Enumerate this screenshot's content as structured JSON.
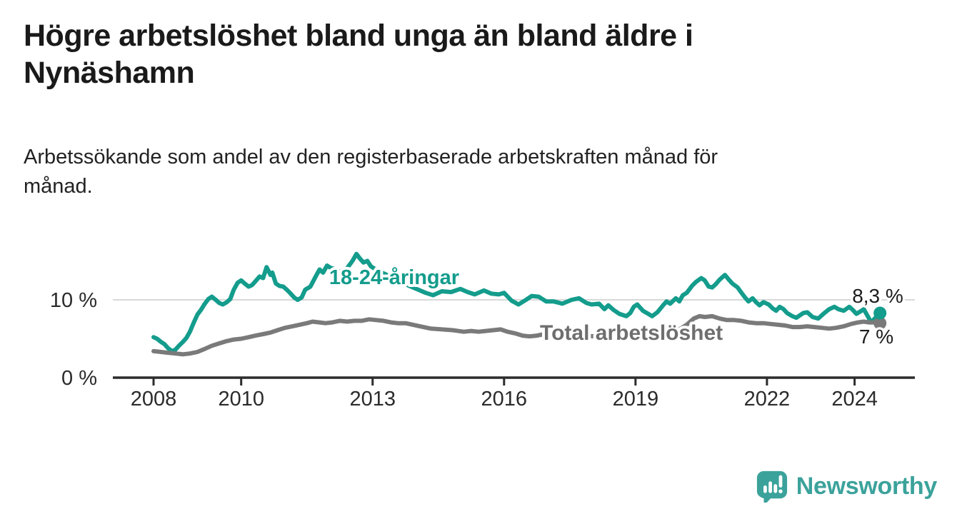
{
  "header": {
    "title": "Högre arbetslöshet bland unga än bland äldre i\nNynäshamn",
    "subtitle": "Arbetssökande som andel av den registerbaserade arbetskraften månad för\nmånad."
  },
  "chart_data": {
    "type": "line",
    "title": "Högre arbetslöshet bland unga än bland äldre i Nynäshamn",
    "xlabel": "",
    "ylabel": "",
    "unit": "%",
    "x_range": [
      2007.9,
      2025.3
    ],
    "y_range": [
      0,
      18
    ],
    "grid": "single horizontal gridline at 10 %",
    "x_ticks": [
      2008,
      2010,
      2013,
      2016,
      2019,
      2022,
      2024
    ],
    "y_ticks": [
      {
        "value": 0,
        "label": "0 %"
      },
      {
        "value": 10,
        "label": "10 %"
      }
    ],
    "series": [
      {
        "name": "18-24-åringar",
        "color": "#149c8c",
        "end_label": "8,3 %",
        "end_value": 8.3,
        "points": [
          [
            2008.0,
            5.2
          ],
          [
            2008.08,
            5.0
          ],
          [
            2008.17,
            4.6
          ],
          [
            2008.25,
            4.3
          ],
          [
            2008.33,
            3.8
          ],
          [
            2008.42,
            3.4
          ],
          [
            2008.5,
            3.6
          ],
          [
            2008.58,
            4.1
          ],
          [
            2008.67,
            4.6
          ],
          [
            2008.75,
            5.1
          ],
          [
            2008.83,
            5.9
          ],
          [
            2008.92,
            7.1
          ],
          [
            2009.0,
            8.1
          ],
          [
            2009.08,
            8.7
          ],
          [
            2009.17,
            9.5
          ],
          [
            2009.25,
            10.1
          ],
          [
            2009.33,
            10.4
          ],
          [
            2009.42,
            10.0
          ],
          [
            2009.5,
            9.6
          ],
          [
            2009.58,
            9.4
          ],
          [
            2009.67,
            9.7
          ],
          [
            2009.75,
            10.1
          ],
          [
            2009.83,
            11.3
          ],
          [
            2009.92,
            12.2
          ],
          [
            2010.0,
            12.5
          ],
          [
            2010.08,
            12.1
          ],
          [
            2010.17,
            11.7
          ],
          [
            2010.25,
            11.9
          ],
          [
            2010.33,
            12.4
          ],
          [
            2010.42,
            13.0
          ],
          [
            2010.5,
            12.8
          ],
          [
            2010.58,
            14.2
          ],
          [
            2010.67,
            13.2
          ],
          [
            2010.71,
            13.5
          ],
          [
            2010.79,
            12.1
          ],
          [
            2010.87,
            11.8
          ],
          [
            2010.96,
            11.7
          ],
          [
            2011.04,
            11.3
          ],
          [
            2011.13,
            10.8
          ],
          [
            2011.21,
            10.3
          ],
          [
            2011.29,
            10.0
          ],
          [
            2011.38,
            10.3
          ],
          [
            2011.46,
            11.3
          ],
          [
            2011.58,
            11.7
          ],
          [
            2011.71,
            13.1
          ],
          [
            2011.79,
            13.9
          ],
          [
            2011.87,
            13.5
          ],
          [
            2011.96,
            14.4
          ],
          [
            2012.04,
            14.1
          ],
          [
            2012.17,
            13.9
          ],
          [
            2012.29,
            13.5
          ],
          [
            2012.42,
            14.1
          ],
          [
            2012.54,
            15.0
          ],
          [
            2012.63,
            15.9
          ],
          [
            2012.71,
            15.3
          ],
          [
            2012.79,
            14.8
          ],
          [
            2012.88,
            15.0
          ],
          [
            2012.96,
            14.3
          ],
          [
            2013.13,
            13.7
          ],
          [
            2013.29,
            13.3
          ],
          [
            2013.5,
            12.7
          ],
          [
            2013.71,
            12.1
          ],
          [
            2013.92,
            11.6
          ],
          [
            2014.04,
            11.3
          ],
          [
            2014.21,
            10.9
          ],
          [
            2014.38,
            10.6
          ],
          [
            2014.58,
            11.1
          ],
          [
            2014.79,
            11.0
          ],
          [
            2015.0,
            11.4
          ],
          [
            2015.17,
            11.0
          ],
          [
            2015.33,
            10.7
          ],
          [
            2015.54,
            11.2
          ],
          [
            2015.71,
            10.8
          ],
          [
            2015.88,
            10.7
          ],
          [
            2016.0,
            10.9
          ],
          [
            2016.17,
            9.9
          ],
          [
            2016.33,
            9.4
          ],
          [
            2016.5,
            10.0
          ],
          [
            2016.63,
            10.5
          ],
          [
            2016.79,
            10.4
          ],
          [
            2016.96,
            9.8
          ],
          [
            2017.13,
            9.8
          ],
          [
            2017.33,
            9.5
          ],
          [
            2017.54,
            10.0
          ],
          [
            2017.71,
            10.2
          ],
          [
            2017.88,
            9.6
          ],
          [
            2018.0,
            9.4
          ],
          [
            2018.17,
            9.5
          ],
          [
            2018.29,
            8.8
          ],
          [
            2018.38,
            9.3
          ],
          [
            2018.5,
            8.7
          ],
          [
            2018.63,
            8.2
          ],
          [
            2018.79,
            7.9
          ],
          [
            2018.88,
            8.3
          ],
          [
            2018.96,
            9.1
          ],
          [
            2019.04,
            9.4
          ],
          [
            2019.17,
            8.6
          ],
          [
            2019.29,
            8.2
          ],
          [
            2019.38,
            7.9
          ],
          [
            2019.5,
            8.4
          ],
          [
            2019.63,
            9.3
          ],
          [
            2019.71,
            9.8
          ],
          [
            2019.79,
            9.5
          ],
          [
            2019.92,
            10.2
          ],
          [
            2020.0,
            9.8
          ],
          [
            2020.08,
            10.6
          ],
          [
            2020.17,
            10.9
          ],
          [
            2020.29,
            11.8
          ],
          [
            2020.38,
            12.3
          ],
          [
            2020.5,
            12.8
          ],
          [
            2020.58,
            12.5
          ],
          [
            2020.67,
            11.7
          ],
          [
            2020.75,
            11.6
          ],
          [
            2020.83,
            12.0
          ],
          [
            2020.92,
            12.6
          ],
          [
            2021.04,
            13.2
          ],
          [
            2021.13,
            12.6
          ],
          [
            2021.21,
            12.1
          ],
          [
            2021.33,
            11.6
          ],
          [
            2021.42,
            10.9
          ],
          [
            2021.5,
            10.3
          ],
          [
            2021.58,
            9.8
          ],
          [
            2021.67,
            10.2
          ],
          [
            2021.75,
            9.7
          ],
          [
            2021.83,
            9.3
          ],
          [
            2021.92,
            9.7
          ],
          [
            2022.04,
            9.4
          ],
          [
            2022.13,
            8.9
          ],
          [
            2022.21,
            8.6
          ],
          [
            2022.29,
            9.1
          ],
          [
            2022.38,
            8.8
          ],
          [
            2022.46,
            8.3
          ],
          [
            2022.58,
            7.9
          ],
          [
            2022.67,
            7.7
          ],
          [
            2022.75,
            8.0
          ],
          [
            2022.83,
            8.3
          ],
          [
            2022.92,
            8.4
          ],
          [
            2023.04,
            7.8
          ],
          [
            2023.17,
            7.6
          ],
          [
            2023.29,
            8.2
          ],
          [
            2023.42,
            8.8
          ],
          [
            2023.54,
            9.1
          ],
          [
            2023.63,
            8.8
          ],
          [
            2023.75,
            8.6
          ],
          [
            2023.88,
            9.1
          ],
          [
            2023.96,
            8.7
          ],
          [
            2024.04,
            8.2
          ],
          [
            2024.13,
            8.5
          ],
          [
            2024.21,
            8.8
          ],
          [
            2024.29,
            8.0
          ],
          [
            2024.38,
            7.1
          ],
          [
            2024.46,
            7.6
          ],
          [
            2024.58,
            8.3
          ]
        ]
      },
      {
        "name": "Total arbetslöshet",
        "color": "#7a7a7a",
        "end_label": "7 %",
        "end_value": 7.0,
        "points": [
          [
            2008.0,
            3.4
          ],
          [
            2008.17,
            3.3
          ],
          [
            2008.33,
            3.2
          ],
          [
            2008.5,
            3.1
          ],
          [
            2008.67,
            3.0
          ],
          [
            2008.83,
            3.1
          ],
          [
            2009.0,
            3.3
          ],
          [
            2009.17,
            3.7
          ],
          [
            2009.33,
            4.1
          ],
          [
            2009.5,
            4.4
          ],
          [
            2009.67,
            4.7
          ],
          [
            2009.83,
            4.9
          ],
          [
            2010.0,
            5.0
          ],
          [
            2010.17,
            5.2
          ],
          [
            2010.33,
            5.4
          ],
          [
            2010.5,
            5.6
          ],
          [
            2010.67,
            5.8
          ],
          [
            2010.83,
            6.1
          ],
          [
            2011.0,
            6.4
          ],
          [
            2011.17,
            6.6
          ],
          [
            2011.33,
            6.8
          ],
          [
            2011.5,
            7.0
          ],
          [
            2011.63,
            7.2
          ],
          [
            2011.79,
            7.1
          ],
          [
            2011.92,
            7.0
          ],
          [
            2012.08,
            7.1
          ],
          [
            2012.25,
            7.3
          ],
          [
            2012.42,
            7.2
          ],
          [
            2012.58,
            7.3
          ],
          [
            2012.75,
            7.3
          ],
          [
            2012.92,
            7.5
          ],
          [
            2013.08,
            7.4
          ],
          [
            2013.25,
            7.3
          ],
          [
            2013.42,
            7.1
          ],
          [
            2013.58,
            7.0
          ],
          [
            2013.75,
            7.0
          ],
          [
            2013.92,
            6.8
          ],
          [
            2014.08,
            6.6
          ],
          [
            2014.33,
            6.3
          ],
          [
            2014.58,
            6.2
          ],
          [
            2014.83,
            6.1
          ],
          [
            2015.08,
            5.9
          ],
          [
            2015.25,
            6.0
          ],
          [
            2015.42,
            5.9
          ],
          [
            2015.58,
            6.0
          ],
          [
            2015.75,
            6.1
          ],
          [
            2015.92,
            6.2
          ],
          [
            2016.08,
            5.9
          ],
          [
            2016.25,
            5.7
          ],
          [
            2016.42,
            5.4
          ],
          [
            2016.58,
            5.3
          ],
          [
            2016.75,
            5.4
          ],
          [
            2016.92,
            5.6
          ],
          [
            2017.08,
            5.6
          ],
          [
            2017.33,
            5.5
          ],
          [
            2017.58,
            5.4
          ],
          [
            2017.83,
            5.4
          ],
          [
            2018.08,
            5.3
          ],
          [
            2018.33,
            5.3
          ],
          [
            2018.58,
            5.3
          ],
          [
            2018.83,
            5.4
          ],
          [
            2019.08,
            5.5
          ],
          [
            2019.33,
            5.6
          ],
          [
            2019.58,
            5.8
          ],
          [
            2019.83,
            6.0
          ],
          [
            2020.0,
            6.2
          ],
          [
            2020.17,
            6.8
          ],
          [
            2020.33,
            7.6
          ],
          [
            2020.46,
            7.9
          ],
          [
            2020.58,
            7.8
          ],
          [
            2020.75,
            7.9
          ],
          [
            2020.92,
            7.6
          ],
          [
            2021.08,
            7.4
          ],
          [
            2021.25,
            7.4
          ],
          [
            2021.42,
            7.3
          ],
          [
            2021.58,
            7.1
          ],
          [
            2021.75,
            7.0
          ],
          [
            2021.92,
            7.0
          ],
          [
            2022.08,
            6.9
          ],
          [
            2022.25,
            6.8
          ],
          [
            2022.42,
            6.7
          ],
          [
            2022.58,
            6.5
          ],
          [
            2022.75,
            6.5
          ],
          [
            2022.92,
            6.6
          ],
          [
            2023.08,
            6.5
          ],
          [
            2023.25,
            6.4
          ],
          [
            2023.42,
            6.3
          ],
          [
            2023.58,
            6.4
          ],
          [
            2023.75,
            6.6
          ],
          [
            2023.92,
            6.9
          ],
          [
            2024.08,
            7.1
          ],
          [
            2024.21,
            7.2
          ],
          [
            2024.33,
            7.1
          ],
          [
            2024.46,
            7.1
          ],
          [
            2024.58,
            7.0
          ]
        ]
      }
    ],
    "colors": {
      "youth_line": "#149c8c",
      "total_line": "#7a7a7a",
      "gridline": "#d8d8d8",
      "axis": "#2c2c2c",
      "text": "#2b2b2b",
      "end_label_text": "#1c1c1c",
      "total_label_text": "#6e6e6e",
      "brand_teal": "#3ba29b"
    }
  },
  "footer": {
    "brand": "Newsworthy"
  }
}
